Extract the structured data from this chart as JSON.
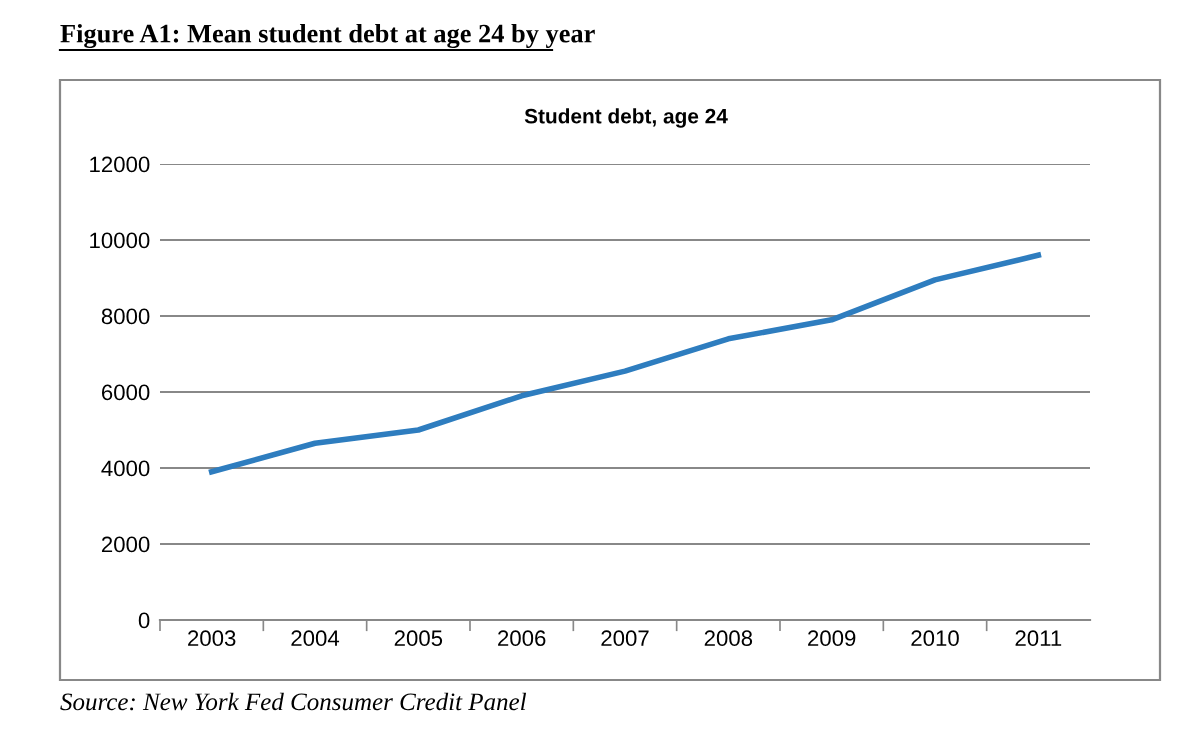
{
  "chart_data": {
    "type": "line",
    "title": "Figure A1: Mean student debt at age 24 by year",
    "subtitle": "Student debt, age 24",
    "categories": [
      "2003",
      "2004",
      "2005",
      "2006",
      "2007",
      "2008",
      "2009",
      "2010",
      "2011"
    ],
    "series": [
      {
        "color": "#2e7dbf",
        "values": [
          3900,
          4650,
          5000,
          5900,
          6550,
          7400,
          7900,
          8950,
          9600
        ]
      }
    ],
    "ylim": [
      0,
      12000
    ],
    "yticks": [
      0,
      2000,
      4000,
      6000,
      8000,
      10000,
      12000
    ],
    "grid": "y",
    "legend": false,
    "marker": "none",
    "line_style": "solid",
    "annotations": [
      "Source: New York Fed Consumer Credit Panel"
    ]
  }
}
